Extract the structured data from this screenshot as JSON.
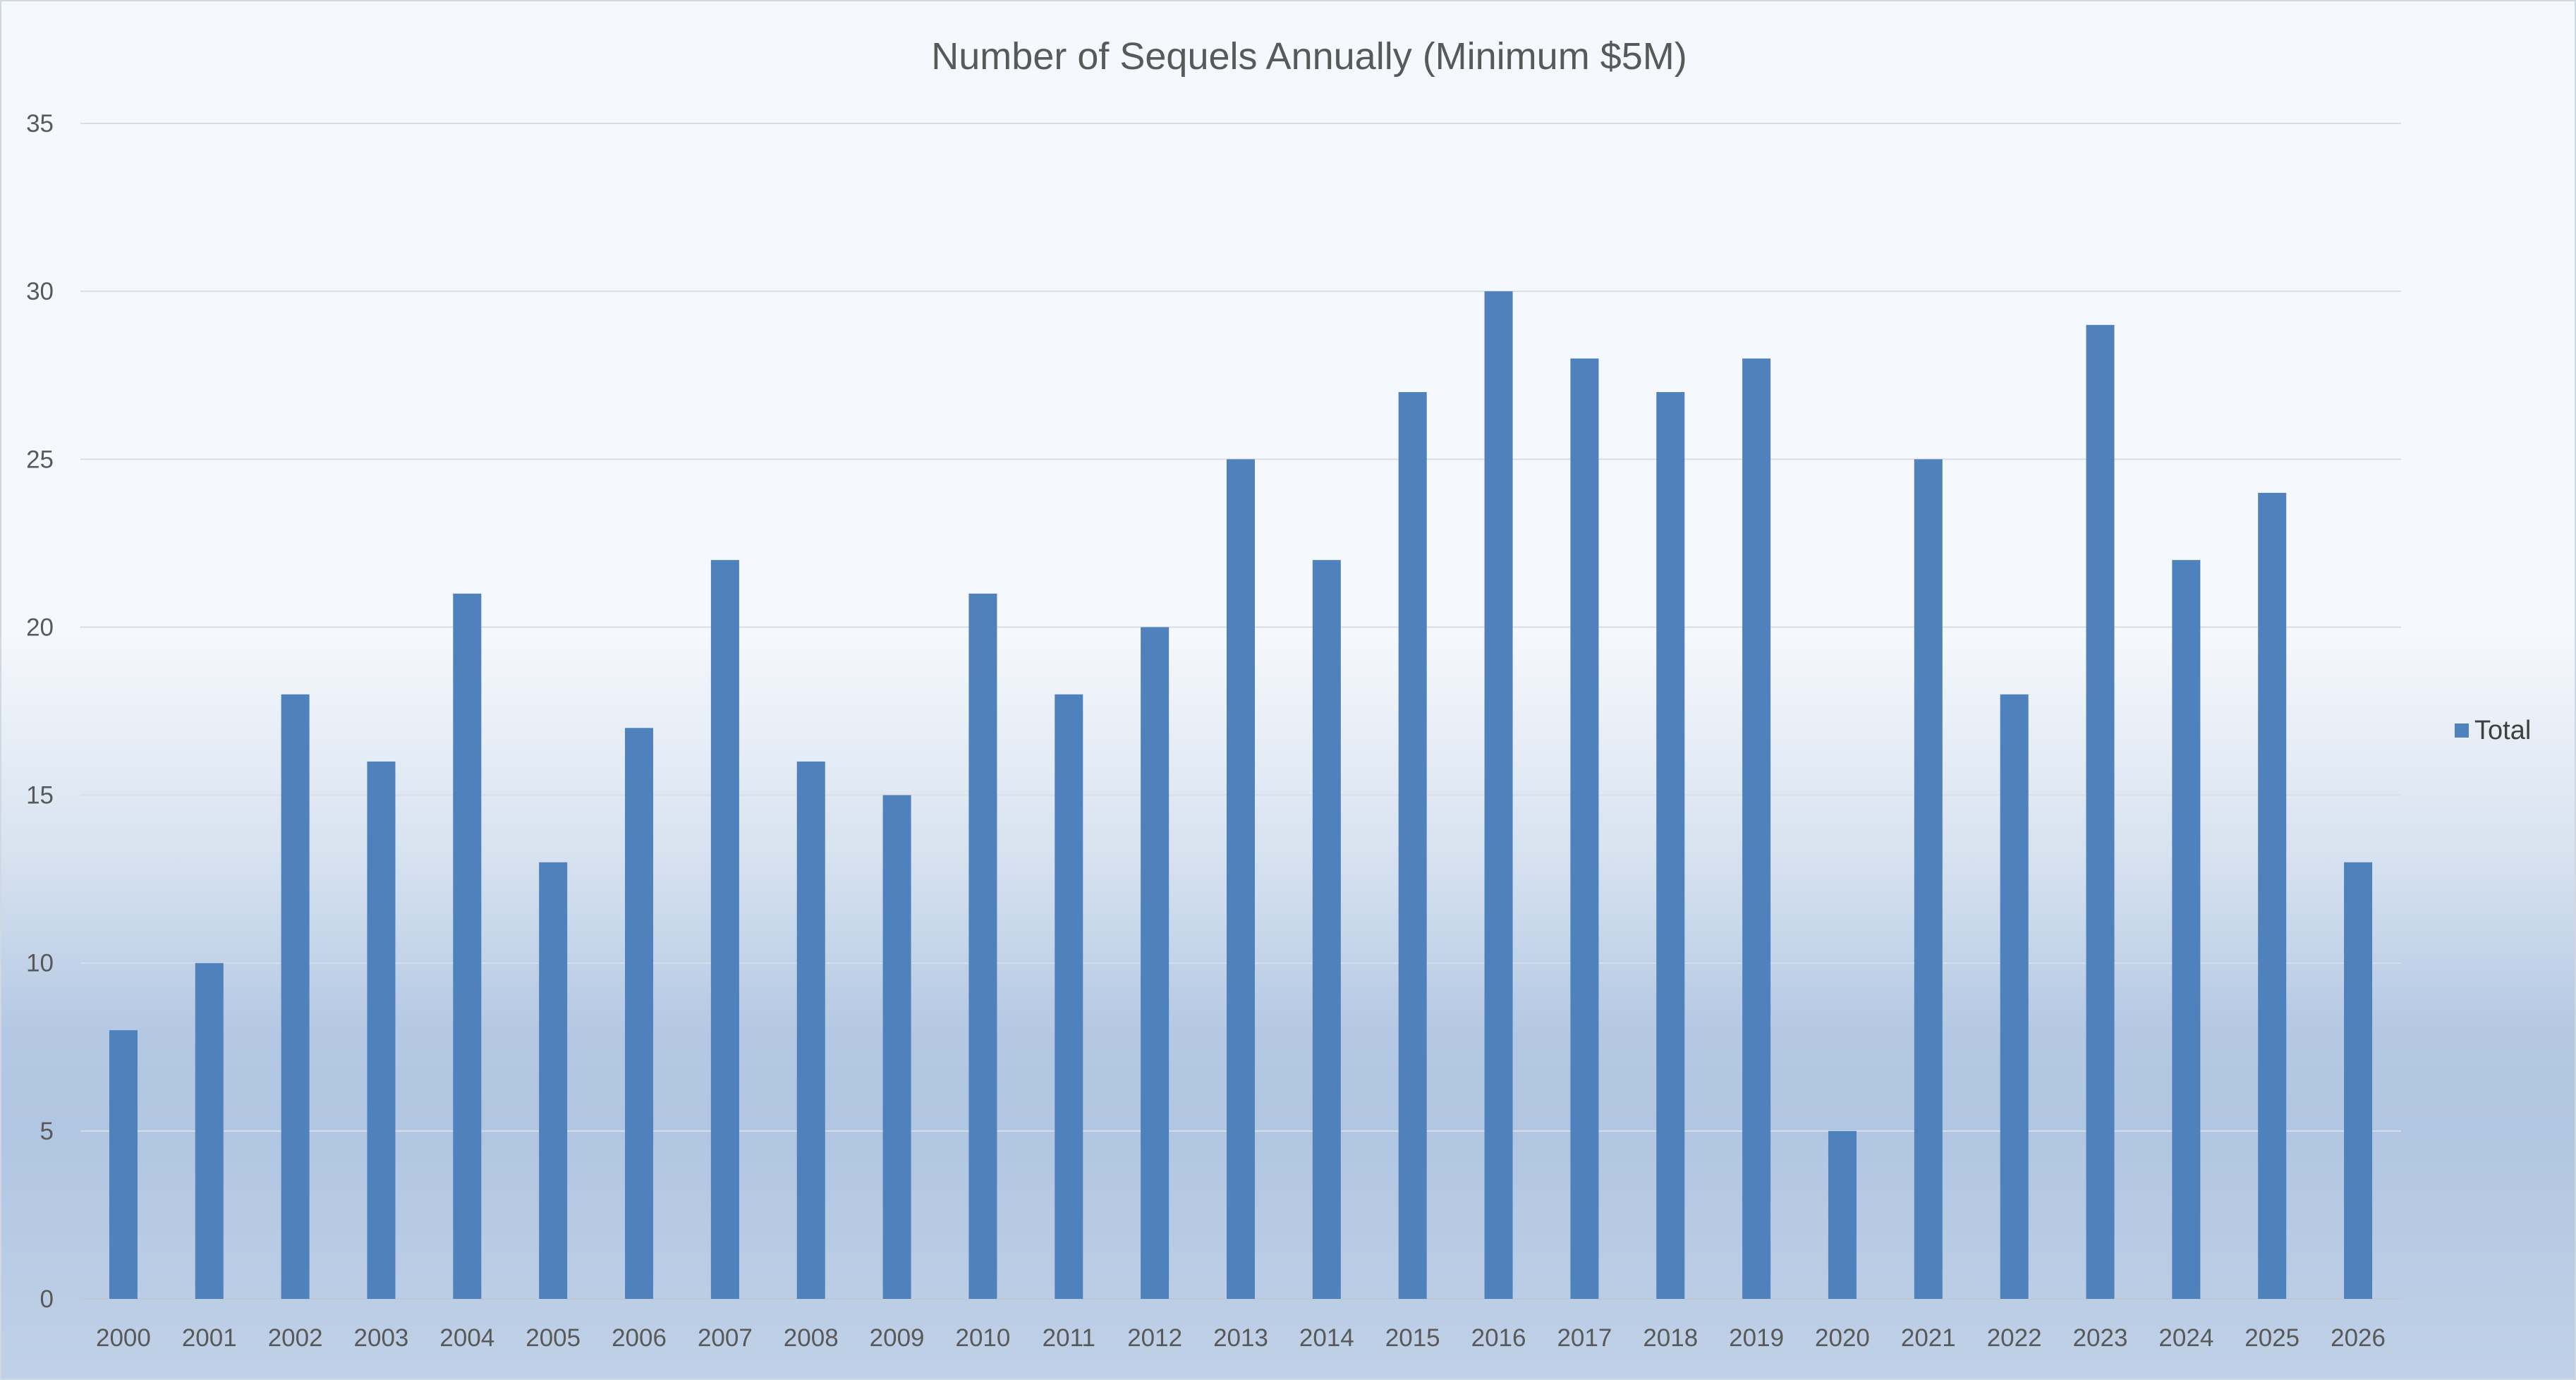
{
  "chart_data": {
    "type": "bar",
    "title": "Number of Sequels Annually (Minimum $5M)",
    "xlabel": "",
    "ylabel": "",
    "categories": [
      "2000",
      "2001",
      "2002",
      "2003",
      "2004",
      "2005",
      "2006",
      "2007",
      "2008",
      "2009",
      "2010",
      "2011",
      "2012",
      "2013",
      "2014",
      "2015",
      "2016",
      "2017",
      "2018",
      "2019",
      "2020",
      "2021",
      "2022",
      "2023",
      "2024",
      "2025",
      "2026"
    ],
    "series": [
      {
        "name": "Total",
        "color": "#4f81bd",
        "values": [
          8,
          10,
          18,
          16,
          21,
          13,
          17,
          22,
          16,
          15,
          21,
          18,
          20,
          25,
          22,
          27,
          30,
          28,
          27,
          28,
          5,
          25,
          18,
          29,
          22,
          24,
          13
        ]
      }
    ],
    "ylim": [
      0,
      35
    ],
    "yticks": [
      0,
      5,
      10,
      15,
      20,
      25,
      30,
      35
    ],
    "grid": true,
    "legend": "right"
  }
}
